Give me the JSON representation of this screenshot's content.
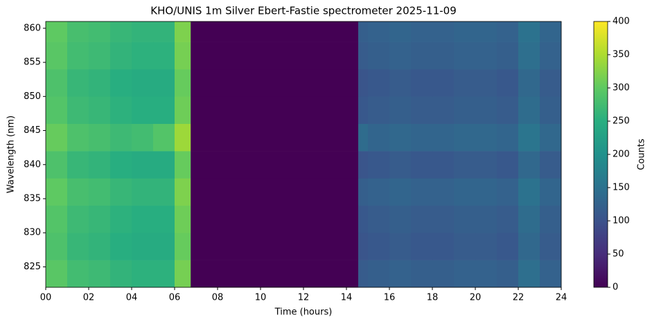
{
  "chart_data": {
    "type": "heatmap",
    "title": "KHO/UNIS 1m Silver Ebert-Fastie spectrometer 2025-11-09",
    "x_label": "Time (hours)",
    "y_label": "Wavelength (nm)",
    "colorbar_label": "Counts",
    "colormap": "viridis",
    "xbins": [
      0,
      1,
      2,
      3,
      4,
      5,
      6,
      6.75,
      14.55,
      15,
      16,
      17,
      18,
      19,
      20,
      21,
      22,
      23,
      24
    ],
    "ybins": [
      822,
      826,
      830,
      834,
      838,
      842,
      846,
      850,
      854,
      858,
      861
    ],
    "values": [
      [
        295,
        275,
        270,
        260,
        255,
        255,
        315,
        0,
        115,
        120,
        125,
        120,
        120,
        125,
        125,
        120,
        145,
        125
      ],
      [
        285,
        265,
        260,
        250,
        245,
        245,
        305,
        0,
        105,
        110,
        115,
        110,
        110,
        115,
        115,
        110,
        135,
        115
      ],
      [
        290,
        270,
        265,
        255,
        250,
        250,
        310,
        0,
        110,
        115,
        120,
        115,
        115,
        120,
        120,
        115,
        140,
        120
      ],
      [
        300,
        280,
        275,
        265,
        260,
        260,
        320,
        0,
        120,
        125,
        130,
        125,
        125,
        130,
        130,
        125,
        150,
        130
      ],
      [
        285,
        265,
        260,
        250,
        245,
        245,
        305,
        0,
        105,
        110,
        115,
        110,
        110,
        115,
        115,
        110,
        135,
        115
      ],
      [
        305,
        285,
        280,
        270,
        275,
        290,
        340,
        0,
        140,
        130,
        135,
        130,
        130,
        135,
        135,
        130,
        155,
        135
      ],
      [
        290,
        270,
        265,
        255,
        250,
        250,
        310,
        0,
        110,
        115,
        120,
        115,
        115,
        120,
        120,
        115,
        140,
        120
      ],
      [
        285,
        265,
        260,
        250,
        245,
        245,
        305,
        0,
        105,
        110,
        115,
        110,
        110,
        115,
        115,
        110,
        135,
        115
      ],
      [
        295,
        275,
        270,
        260,
        255,
        255,
        315,
        0,
        115,
        120,
        125,
        120,
        120,
        125,
        125,
        120,
        145,
        125
      ],
      [
        300,
        280,
        275,
        265,
        260,
        260,
        320,
        0,
        120,
        125,
        130,
        125,
        125,
        130,
        130,
        125,
        150,
        130
      ]
    ],
    "xlim": [
      0,
      24
    ],
    "xticks": [
      {
        "value": 0,
        "label": "00"
      },
      {
        "value": 2,
        "label": "02"
      },
      {
        "value": 4,
        "label": "04"
      },
      {
        "value": 6,
        "label": "06"
      },
      {
        "value": 8,
        "label": "08"
      },
      10,
      12,
      14,
      16,
      18,
      20,
      22,
      24
    ],
    "ylim": [
      822,
      861
    ],
    "yticks": [
      825,
      830,
      835,
      840,
      845,
      850,
      855,
      860
    ],
    "clim": [
      0,
      400
    ],
    "cticks": [
      0,
      50,
      100,
      150,
      200,
      250,
      300,
      350,
      400
    ]
  }
}
